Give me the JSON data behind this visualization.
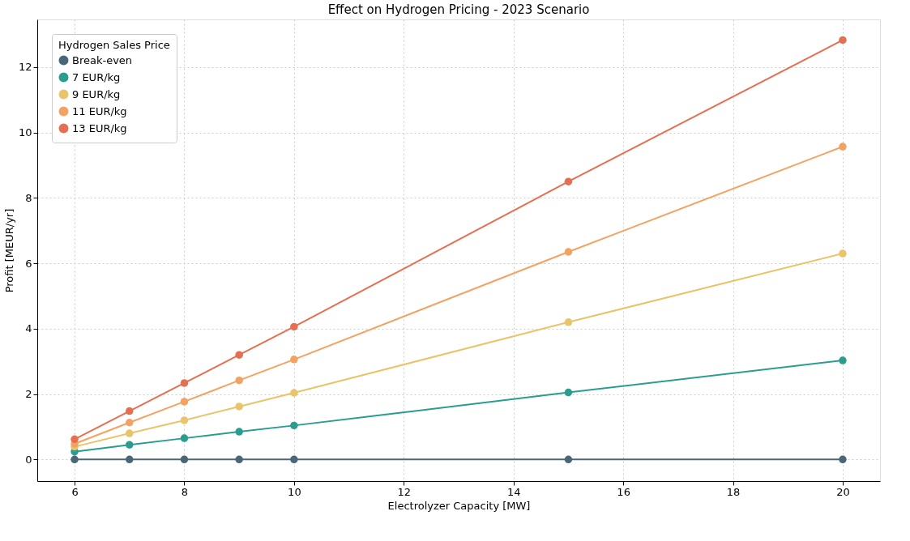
{
  "chart_data": {
    "type": "line",
    "title": "Effect on Hydrogen Pricing - 2023 Scenario",
    "xlabel": "Electrolyzer Capacity [MW]",
    "ylabel": "Profit [MEUR/yr]",
    "legend_title": "Hydrogen Sales Price",
    "x": [
      6,
      7,
      8,
      9,
      10,
      15,
      20
    ],
    "series": [
      {
        "name": "Break-even",
        "color": "#4a6778",
        "values": [
          0,
          0,
          0,
          0,
          0,
          0,
          0
        ]
      },
      {
        "name": "7 EUR/kg",
        "color": "#2a9d8f",
        "values": [
          0.24,
          0.45,
          0.65,
          0.85,
          1.04,
          2.05,
          3.03
        ]
      },
      {
        "name": "9 EUR/kg",
        "color": "#e9c46a",
        "values": [
          0.39,
          0.8,
          1.2,
          1.62,
          2.04,
          4.2,
          6.3
        ]
      },
      {
        "name": "11 EUR/kg",
        "color": "#f4a261",
        "values": [
          0.48,
          1.13,
          1.77,
          2.42,
          3.06,
          6.35,
          9.57
        ]
      },
      {
        "name": "13 EUR/kg",
        "color": "#e76f51",
        "values": [
          0.62,
          1.48,
          2.34,
          3.2,
          4.06,
          8.5,
          12.83
        ]
      }
    ],
    "xlim": [
      5.32,
      20.68
    ],
    "xticks": [
      6,
      8,
      10,
      12,
      14,
      16,
      18,
      20
    ],
    "ylim": [
      -0.66,
      13.46
    ],
    "yticks": [
      0,
      2,
      4,
      6,
      8,
      10,
      12
    ],
    "grid": true,
    "legend": "top left",
    "marker": "circle",
    "line_style": "solid"
  }
}
